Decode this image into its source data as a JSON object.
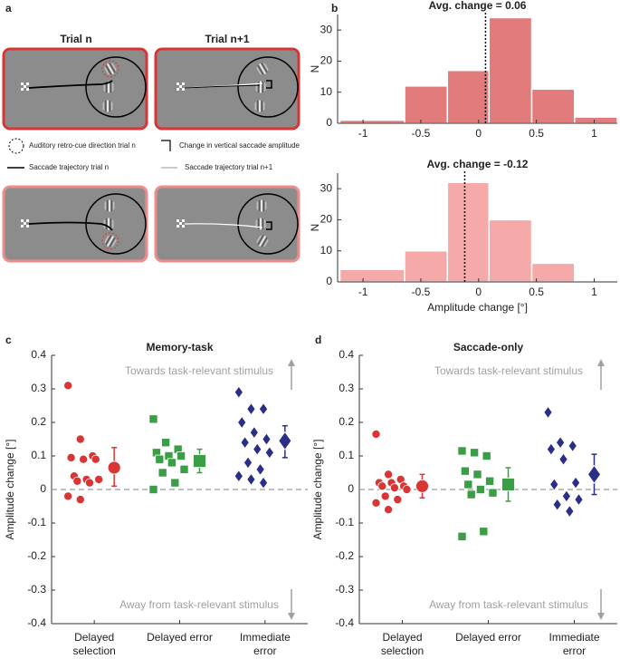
{
  "panel_labels": [
    "a",
    "b",
    "c",
    "d"
  ],
  "diagram": {
    "titles": [
      "Trial n",
      "Trial n+1"
    ],
    "legend": [
      "Auditory retro-cue direction trial n",
      "Change in vertical saccade amplitude",
      "Saccade trajectory trial n",
      "Saccade trajectory trial n+1"
    ]
  },
  "chart_data": [
    {
      "type": "histogram",
      "title": "Avg. change = 0.06",
      "avg": 0.06,
      "ylabel": "N",
      "color": "#e27c7c",
      "bins": [
        -1.2,
        -0.64,
        -0.27,
        0.09,
        0.46,
        0.83,
        1.2
      ],
      "values": [
        1,
        12,
        17,
        34,
        11,
        2
      ],
      "xlim": [
        -1.22,
        1.2
      ],
      "xticks": [
        -1,
        -0.5,
        0,
        0.5,
        1
      ],
      "ylim": [
        0,
        35
      ],
      "yticks": [
        0,
        10,
        20,
        30
      ]
    },
    {
      "type": "histogram",
      "title": "Avg. change = -0.12",
      "avg": -0.12,
      "ylabel": "N",
      "xlabel": "Amplitude change [°]",
      "color": "#f5a9a9",
      "bins": [
        -1.2,
        -0.64,
        -0.27,
        0.09,
        0.46,
        0.83
      ],
      "values": [
        4,
        10,
        32,
        20,
        6
      ],
      "xlim": [
        -1.22,
        1.2
      ],
      "xticks": [
        -1,
        -0.5,
        0,
        0.5,
        1
      ],
      "ylim": [
        0,
        35
      ],
      "yticks": [
        0,
        10,
        20,
        30
      ]
    },
    {
      "type": "strip",
      "title": "Memory-task",
      "ylabel": "Amplitude change [°]",
      "annotations": [
        "Towards task-relevant stimulus",
        "Away from task-relevant stimulus"
      ],
      "categories": [
        "Delayed selection",
        "Delayed error",
        "Immediate error"
      ],
      "ylim": [
        -0.4,
        0.4
      ],
      "yticks": [
        -0.4,
        -0.3,
        -0.2,
        -0.1,
        0,
        0.1,
        0.2,
        0.3,
        0.4
      ],
      "series": [
        {
          "color": "#d93535",
          "marker": "circle",
          "values": [
            0.31,
            0.15,
            0.1,
            0.095,
            0.09,
            0.09,
            0.04,
            0.03,
            0.03,
            0.025,
            0.02,
            -0.02,
            -0.03
          ],
          "mean": 0.065,
          "ci": [
            0.01,
            0.125
          ]
        },
        {
          "color": "#3a9e46",
          "marker": "square",
          "values": [
            0.21,
            0.14,
            0.12,
            0.11,
            0.1,
            0.1,
            0.09,
            0.08,
            0.06,
            0.05,
            0.02,
            0.0
          ],
          "mean": 0.085,
          "ci": [
            0.05,
            0.12
          ]
        },
        {
          "color": "#2a2e86",
          "marker": "diamond",
          "values": [
            0.29,
            0.24,
            0.24,
            0.2,
            0.17,
            0.15,
            0.14,
            0.12,
            0.11,
            0.08,
            0.06,
            0.04,
            0.03,
            0.02
          ],
          "mean": 0.145,
          "ci": [
            0.095,
            0.19
          ]
        }
      ]
    },
    {
      "type": "strip",
      "title": "Saccade-only",
      "ylabel": "Amplitude change [°]",
      "annotations": [
        "Towards task-relevant stimulus",
        "Away from task-relevant stimulus"
      ],
      "categories": [
        "Delayed selection",
        "Delayed error",
        "Immediate error"
      ],
      "ylim": [
        -0.4,
        0.4
      ],
      "yticks": [
        -0.4,
        -0.3,
        -0.2,
        -0.1,
        0,
        0.1,
        0.2,
        0.3,
        0.4
      ],
      "series": [
        {
          "color": "#d93535",
          "marker": "circle",
          "values": [
            0.165,
            0.045,
            0.03,
            0.02,
            0.02,
            0.01,
            0.01,
            0.005,
            0.0,
            -0.02,
            -0.03,
            -0.04,
            -0.06
          ],
          "mean": 0.01,
          "ci": [
            -0.025,
            0.045
          ]
        },
        {
          "color": "#3a9e46",
          "marker": "square",
          "values": [
            0.115,
            0.11,
            0.1,
            0.055,
            0.045,
            0.025,
            0.015,
            0.0,
            -0.01,
            -0.015,
            -0.125,
            -0.14
          ],
          "mean": 0.015,
          "ci": [
            -0.035,
            0.065
          ]
        },
        {
          "color": "#2a2e86",
          "marker": "diamond",
          "values": [
            0.23,
            0.14,
            0.13,
            0.12,
            0.09,
            0.02,
            0.015,
            -0.02,
            -0.03,
            -0.045,
            -0.065
          ],
          "mean": 0.045,
          "ci": [
            -0.015,
            0.105
          ]
        }
      ]
    }
  ]
}
